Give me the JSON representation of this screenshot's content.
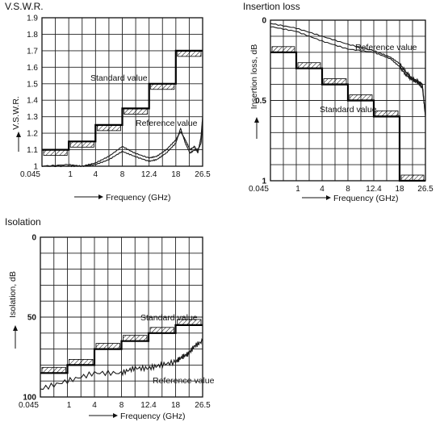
{
  "chart_data": [
    {
      "type": "line",
      "title": "V.S.W.R.",
      "xlabel": "Frequency (GHz)",
      "ylabel": "V.S.W.R.",
      "x_ticks": [
        "0.045",
        "1",
        "4",
        "8",
        "12.4",
        "18",
        "26.5"
      ],
      "y_ticks": [
        "1",
        "1.1",
        "1.2",
        "1.3",
        "1.4",
        "1.5",
        "1.6",
        "1.7",
        "1.8",
        "1.9"
      ],
      "ylim": [
        1.0,
        1.9
      ],
      "grid": true,
      "annotations": [
        "Standard value",
        "Reference value"
      ],
      "series": [
        {
          "name": "Standard value",
          "x": [
            0.045,
            1,
            1,
            4,
            4,
            8,
            8,
            12.4,
            12.4,
            18,
            18,
            26.5
          ],
          "y": [
            1.1,
            1.1,
            1.15,
            1.15,
            1.25,
            1.25,
            1.35,
            1.35,
            1.5,
            1.5,
            1.7,
            1.7
          ]
        },
        {
          "name": "Reference value",
          "x": [
            0.045,
            1,
            2.5,
            4,
            6,
            8,
            10,
            12.4,
            14,
            16,
            18,
            19.5,
            21,
            22.5,
            24,
            25,
            26,
            26.5
          ],
          "y": [
            1.0,
            1.01,
            1.0,
            1.02,
            1.06,
            1.12,
            1.08,
            1.05,
            1.06,
            1.1,
            1.16,
            1.21,
            1.16,
            1.1,
            1.12,
            1.08,
            1.18,
            1.3
          ]
        },
        {
          "name": "Reference value",
          "x": [
            0.045,
            1,
            2.5,
            4,
            6,
            8,
            10,
            12.4,
            14,
            16,
            18,
            19.5,
            21,
            22.5,
            24,
            25,
            26,
            26.5
          ],
          "y": [
            1.0,
            1.0,
            1.0,
            1.01,
            1.04,
            1.09,
            1.06,
            1.03,
            1.04,
            1.08,
            1.14,
            1.23,
            1.14,
            1.08,
            1.1,
            1.1,
            1.14,
            1.25
          ]
        }
      ]
    },
    {
      "type": "line",
      "title": "Insertion loss",
      "xlabel": "Frequency (GHz)",
      "ylabel": "Insertion loss, dB",
      "x_ticks": [
        "0.045",
        "1",
        "4",
        "8",
        "12.4",
        "18",
        "26.5"
      ],
      "y_ticks": [
        "0",
        "0.5",
        "1"
      ],
      "ylim": [
        0,
        1
      ],
      "y_inverted": true,
      "grid": true,
      "annotations": [
        "Reference value",
        "Standard value"
      ],
      "series": [
        {
          "name": "Standard value",
          "x": [
            0.045,
            1,
            1,
            4,
            4,
            8,
            8,
            12.4,
            12.4,
            18,
            18,
            26.5
          ],
          "y": [
            0.2,
            0.2,
            0.3,
            0.3,
            0.4,
            0.4,
            0.5,
            0.5,
            0.6,
            0.6,
            1.0,
            1.0
          ]
        },
        {
          "name": "Reference value",
          "x": [
            0.045,
            1,
            4,
            8,
            12.4,
            16,
            18,
            20,
            22,
            24,
            25.5,
            26.5
          ],
          "y": [
            0.02,
            0.05,
            0.1,
            0.15,
            0.19,
            0.23,
            0.27,
            0.32,
            0.36,
            0.38,
            0.4,
            0.6
          ]
        },
        {
          "name": "Reference value",
          "x": [
            0.045,
            1,
            4,
            8,
            12.4,
            16,
            18,
            20,
            22,
            24,
            25.5,
            26.5
          ],
          "y": [
            0.04,
            0.07,
            0.13,
            0.18,
            0.2,
            0.24,
            0.29,
            0.34,
            0.37,
            0.39,
            0.42,
            0.6
          ]
        }
      ]
    },
    {
      "type": "line",
      "title": "Isolation",
      "xlabel": "Frequency (GHz)",
      "ylabel": "Isolation, dB",
      "x_ticks": [
        "0.045",
        "1",
        "4",
        "8",
        "12.4",
        "18",
        "26.5"
      ],
      "y_ticks": [
        "0",
        "50",
        "100"
      ],
      "ylim": [
        0,
        100
      ],
      "y_inverted": true,
      "grid": true,
      "annotations": [
        "Standard value",
        "Reference value"
      ],
      "series": [
        {
          "name": "Standard value",
          "x": [
            0.045,
            1,
            1,
            4,
            4,
            8,
            8,
            12.4,
            12.4,
            18,
            18,
            26.5
          ],
          "y": [
            85,
            85,
            80,
            80,
            70,
            70,
            65,
            65,
            60,
            60,
            55,
            55
          ]
        },
        {
          "name": "Reference value",
          "x": [
            0.045,
            1,
            4,
            8,
            10,
            12.4,
            15,
            18,
            20,
            22,
            24,
            26.5
          ],
          "y": [
            95,
            90,
            85,
            85,
            82,
            82,
            80,
            78,
            75,
            73,
            68,
            65
          ]
        }
      ]
    }
  ]
}
